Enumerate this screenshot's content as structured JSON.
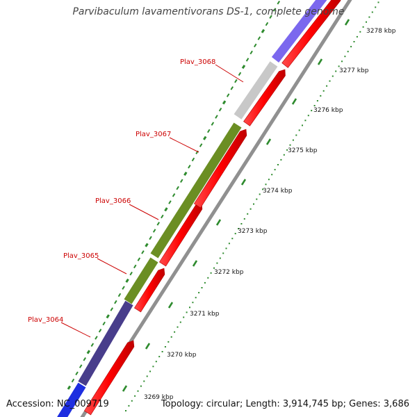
{
  "title": "Parvibaculum lavamentivorans DS-1, complete genome",
  "accession": "Accession: NC_009719",
  "topology": "Topology: circular; Length: 3,914,745 bp; Genes: 3,686",
  "colors": {
    "background": "#ffffff",
    "gene_red": "#ff0000",
    "gene_olive": "#6b8e23",
    "gene_slate": "#483d8b",
    "gene_purple": "#7b68ee",
    "gene_grey": "#c8c8c8",
    "gene_blue": "#1e2ee0",
    "backbone": "#909090",
    "tick_green": "#2e8b2e",
    "label_red": "#cc0000"
  },
  "scale_ticks": [
    "3269 kbp",
    "3270 kbp",
    "3271 kbp",
    "3272 kbp",
    "3273 kbp",
    "3274 kbp",
    "3275 kbp",
    "3276 kbp",
    "3277 kbp",
    "3278 kbp"
  ],
  "gene_labels": [
    "Plav_3064",
    "Plav_3065",
    "Plav_3066",
    "Plav_3067",
    "Plav_3068"
  ]
}
